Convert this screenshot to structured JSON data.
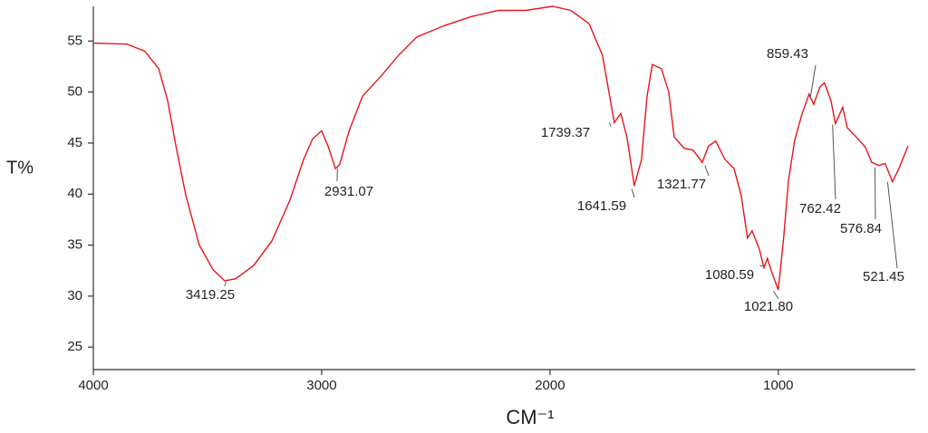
{
  "chart_data": {
    "type": "line",
    "xlabel": "CM⁻¹",
    "ylabel": "T%",
    "xlim": [
      4000,
      400
    ],
    "xticks": [
      4000,
      3000,
      2000,
      1000
    ],
    "ylim": [
      22.8,
      58.4
    ],
    "yticks": [
      25,
      30,
      35,
      40,
      45,
      50,
      55
    ],
    "grid": false,
    "series": [
      {
        "color": "#e8141a",
        "x": [
          4000,
          3853,
          3774,
          3714,
          3675,
          3635,
          3595,
          3536,
          3476,
          3425,
          3377,
          3298,
          3218,
          3139,
          3079,
          3040,
          3000,
          2972,
          2940,
          2921,
          2881,
          2821,
          2742,
          2663,
          2583,
          2464,
          2345,
          2226,
          2107,
          1988,
          1909,
          1829,
          1770,
          1742,
          1718,
          1690,
          1663,
          1631,
          1599,
          1575,
          1552,
          1512,
          1480,
          1456,
          1413,
          1373,
          1333,
          1306,
          1274,
          1234,
          1194,
          1163,
          1135,
          1115,
          1083,
          1063,
          1048,
          1028,
          1000,
          976,
          956,
          929,
          897,
          865,
          845,
          818,
          798,
          770,
          750,
          718,
          698,
          659,
          619,
          591,
          559,
          532,
          500,
          472,
          432
        ],
        "values": [
          54.8,
          54.7,
          54.0,
          52.3,
          49.2,
          44.3,
          39.9,
          35.0,
          32.6,
          31.5,
          31.7,
          33.0,
          35.4,
          39.4,
          43.4,
          45.4,
          46.2,
          44.7,
          42.5,
          42.9,
          46.1,
          49.6,
          51.5,
          53.6,
          55.4,
          56.5,
          57.4,
          58.0,
          58.0,
          58.4,
          58.0,
          56.7,
          53.6,
          50.0,
          47.0,
          47.9,
          45.6,
          40.8,
          43.4,
          49.6,
          52.7,
          52.3,
          50.0,
          45.6,
          44.5,
          44.3,
          43.1,
          44.7,
          45.2,
          43.4,
          42.5,
          39.9,
          35.7,
          36.4,
          34.6,
          32.8,
          33.7,
          32.3,
          30.6,
          35.9,
          41.2,
          45.2,
          47.8,
          49.8,
          48.8,
          50.5,
          50.9,
          49.2,
          46.9,
          48.5,
          46.5,
          45.6,
          44.6,
          43.1,
          42.8,
          43.0,
          41.2,
          42.5,
          44.7
        ]
      }
    ],
    "peaks": {
      "x": [
        3419.25,
        2931.07,
        1739.37,
        1641.59,
        1321.77,
        1080.59,
        1021.8,
        859.43,
        762.42,
        576.84,
        521.45
      ],
      "values": [
        31.4,
        42.5,
        47.0,
        40.5,
        42.8,
        33.0,
        30.5,
        49.5,
        46.8,
        42.6,
        41.2
      ],
      "value_labels": [
        "3419.25",
        "2931.07",
        "1739.37",
        "1641.59",
        "1321.77",
        "1080.59",
        "1021.80",
        "859.43",
        "762.42",
        "576.84",
        "521.45"
      ]
    }
  }
}
